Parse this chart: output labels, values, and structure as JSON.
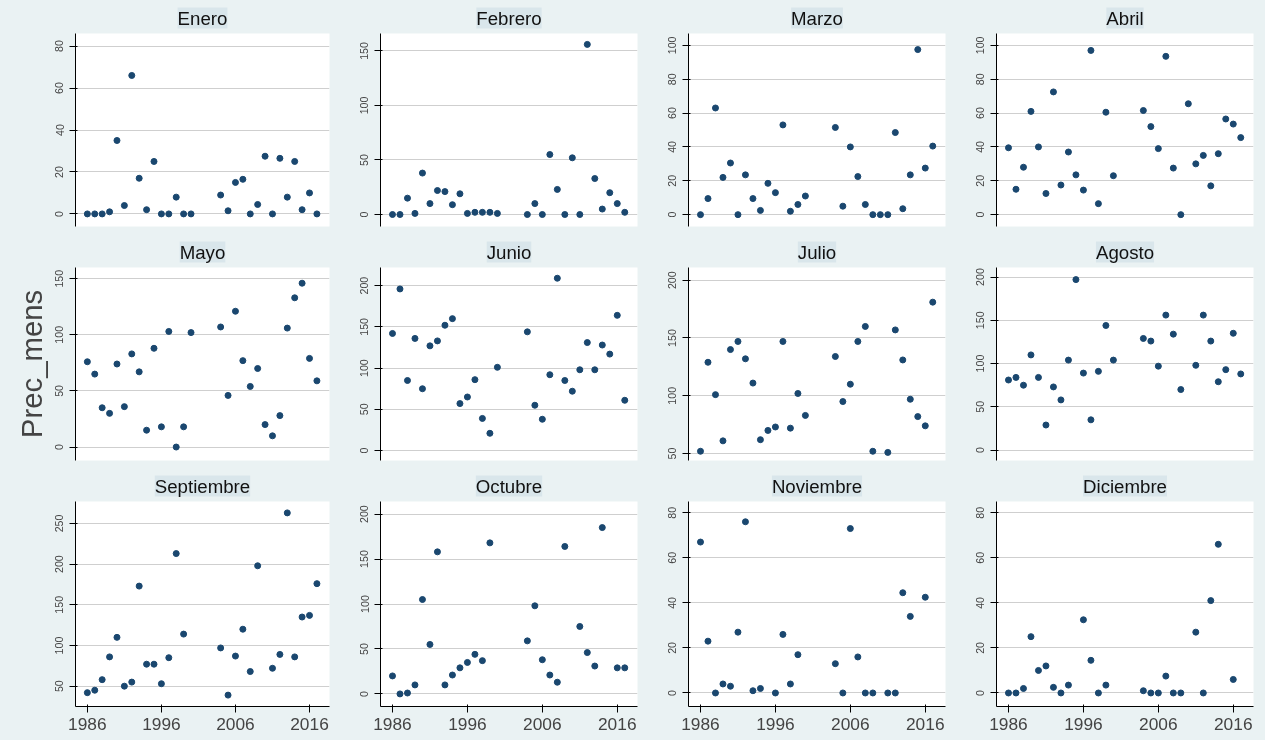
{
  "chart_data": [
    {
      "type": "scatter",
      "title": "Enero",
      "marker": "circle",
      "grid": "y",
      "tick_labels": "y",
      "xlim": [
        1984.4,
        2018.7
      ],
      "xticks": [
        1986,
        1996,
        2006,
        2016
      ],
      "ylim": [
        -6,
        86
      ],
      "yticks": [
        0,
        20,
        40,
        60,
        80
      ],
      "x": [
        1986,
        1987,
        1988,
        1989,
        1990,
        1991,
        1992,
        1993,
        1994,
        1995,
        1996,
        1997,
        1998,
        1999,
        2000,
        2004,
        2005,
        2006,
        2007,
        2008,
        2009,
        2010,
        2011,
        2012,
        2013,
        2014,
        2015,
        2016,
        2017
      ],
      "series": [
        {
          "color": "#1a476f",
          "values": [
            0,
            0,
            0,
            1,
            35,
            4,
            66,
            17,
            2,
            25,
            0,
            0,
            8,
            0,
            0,
            9,
            1.5,
            15,
            16.5,
            0,
            4.5,
            27.5,
            0,
            26.5,
            8,
            25,
            2,
            10,
            0
          ]
        }
      ]
    },
    {
      "type": "scatter",
      "title": "Febrero",
      "marker": "circle",
      "grid": "y",
      "tick_labels": "y",
      "xlim": [
        1984.4,
        2018.7
      ],
      "xticks": [
        1986,
        1996,
        2006,
        2016
      ],
      "ylim": [
        -11,
        166
      ],
      "yticks": [
        0,
        50,
        100,
        150
      ],
      "x": [
        1986,
        1987,
        1988,
        1989,
        1990,
        1991,
        1992,
        1993,
        1994,
        1995,
        1996,
        1997,
        1998,
        1999,
        2000,
        2004,
        2005,
        2006,
        2007,
        2008,
        2009,
        2010,
        2011,
        2012,
        2013,
        2014,
        2015,
        2016,
        2017
      ],
      "series": [
        {
          "color": "#1a476f",
          "values": [
            0,
            0,
            15,
            1,
            38,
            10,
            22,
            21,
            9,
            19,
            1,
            2,
            2,
            2,
            1,
            0,
            10,
            0,
            55,
            23,
            0,
            52,
            0,
            156,
            33,
            5,
            20,
            10,
            2
          ]
        }
      ]
    },
    {
      "type": "scatter",
      "title": "Marzo",
      "marker": "circle",
      "grid": "y",
      "tick_labels": "y",
      "xlim": [
        1984.4,
        2018.7
      ],
      "xticks": [
        1986,
        1996,
        2006,
        2016
      ],
      "ylim": [
        -7,
        107
      ],
      "yticks": [
        0,
        20,
        40,
        60,
        80,
        100
      ],
      "x": [
        1986,
        1987,
        1988,
        1989,
        1990,
        1991,
        1992,
        1993,
        1994,
        1995,
        1996,
        1997,
        1998,
        1999,
        2000,
        2004,
        2005,
        2006,
        2007,
        2008,
        2009,
        2010,
        2011,
        2012,
        2013,
        2014,
        2015,
        2016,
        2017
      ],
      "series": [
        {
          "color": "#1a476f",
          "values": [
            0,
            9.5,
            63,
            22,
            30.5,
            0,
            23.5,
            9.5,
            2.5,
            18.5,
            13,
            53,
            2,
            6,
            11,
            51.5,
            5,
            40,
            22.5,
            6,
            0,
            0,
            0,
            48.5,
            3.5,
            23.5,
            97.5,
            27.5,
            40.5
          ]
        }
      ]
    },
    {
      "type": "scatter",
      "title": "Abril",
      "marker": "circle",
      "grid": "y",
      "tick_labels": "y",
      "xlim": [
        1984.4,
        2018.7
      ],
      "xticks": [
        1986,
        1996,
        2006,
        2016
      ],
      "ylim": [
        -7,
        107
      ],
      "yticks": [
        0,
        20,
        40,
        60,
        80,
        100
      ],
      "x": [
        1986,
        1987,
        1988,
        1989,
        1990,
        1991,
        1992,
        1993,
        1994,
        1995,
        1996,
        1997,
        1998,
        1999,
        2000,
        2004,
        2005,
        2006,
        2007,
        2008,
        2009,
        2010,
        2011,
        2012,
        2013,
        2014,
        2015,
        2016,
        2017
      ],
      "series": [
        {
          "color": "#1a476f",
          "values": [
            39.5,
            15,
            28,
            61,
            40,
            12.5,
            72.5,
            17.5,
            37,
            23.5,
            14.5,
            97,
            6.5,
            60.5,
            23,
            61.5,
            52,
            39,
            93.5,
            27.5,
            0,
            65.5,
            30,
            35,
            17,
            36,
            56.5,
            53.5,
            45.5
          ]
        }
      ]
    },
    {
      "type": "scatter",
      "title": "Mayo",
      "ylabel": "Prec_mens",
      "marker": "circle",
      "grid": "y",
      "tick_labels": "y",
      "xlim": [
        1984.4,
        2018.7
      ],
      "xticks": [
        1986,
        1996,
        2006,
        2016
      ],
      "ylim": [
        -12,
        160
      ],
      "yticks": [
        0,
        50,
        100,
        150
      ],
      "x": [
        1986,
        1987,
        1988,
        1989,
        1990,
        1991,
        1992,
        1993,
        1994,
        1995,
        1996,
        1997,
        1998,
        1999,
        2000,
        2004,
        2005,
        2006,
        2007,
        2008,
        2009,
        2010,
        2011,
        2012,
        2013,
        2014,
        2015,
        2016,
        2017
      ],
      "series": [
        {
          "color": "#1a476f",
          "values": [
            76,
            65,
            35,
            30,
            74,
            36,
            83,
            67,
            15,
            88,
            18,
            103,
            0,
            18,
            102,
            107,
            46,
            121,
            77,
            54,
            70,
            20,
            10,
            28,
            106,
            133,
            146,
            79,
            59
          ]
        }
      ]
    },
    {
      "type": "scatter",
      "title": "Junio",
      "marker": "circle",
      "grid": "y",
      "tick_labels": "y",
      "xlim": [
        1984.4,
        2018.7
      ],
      "xticks": [
        1986,
        1996,
        2006,
        2016
      ],
      "ylim": [
        -12,
        222
      ],
      "yticks": [
        0,
        50,
        100,
        150,
        200
      ],
      "x": [
        1986,
        1987,
        1988,
        1989,
        1990,
        1991,
        1992,
        1993,
        1994,
        1995,
        1996,
        1997,
        1998,
        1999,
        2000,
        2004,
        2005,
        2006,
        2007,
        2008,
        2009,
        2010,
        2011,
        2012,
        2013,
        2014,
        2015,
        2016,
        2017
      ],
      "series": [
        {
          "color": "#1a476f",
          "values": [
            142,
            196,
            85,
            136,
            75,
            127,
            133,
            152,
            160,
            57,
            65,
            86,
            39,
            21,
            101,
            144,
            55,
            38,
            92,
            209,
            85,
            72,
            98,
            131,
            98,
            128,
            117,
            164,
            61
          ]
        }
      ]
    },
    {
      "type": "scatter",
      "title": "Julio",
      "marker": "circle",
      "grid": "y",
      "tick_labels": "y",
      "xlim": [
        1984.4,
        2018.7
      ],
      "xticks": [
        1986,
        1996,
        2006,
        2016
      ],
      "ylim": [
        44,
        211
      ],
      "yticks": [
        50,
        100,
        150,
        200
      ],
      "x": [
        1986,
        1987,
        1988,
        1989,
        1990,
        1991,
        1992,
        1993,
        1994,
        1995,
        1996,
        1997,
        1998,
        1999,
        2000,
        2004,
        2005,
        2006,
        2007,
        2008,
        2009,
        2011,
        2012,
        2013,
        2014,
        2015,
        2016,
        2017
      ],
      "series": [
        {
          "color": "#1a476f",
          "values": [
            52,
            129,
            101,
            61,
            140,
            147,
            132,
            111,
            62,
            70,
            73,
            147,
            72,
            102,
            83,
            134,
            95,
            110,
            147,
            160,
            52,
            51,
            157,
            131,
            97,
            82,
            74,
            181
          ]
        }
      ]
    },
    {
      "type": "scatter",
      "title": "Agosto",
      "marker": "circle",
      "grid": "y",
      "tick_labels": "y",
      "xlim": [
        1984.4,
        2018.7
      ],
      "xticks": [
        1986,
        1996,
        2006,
        2016
      ],
      "ylim": [
        -12,
        211
      ],
      "yticks": [
        0,
        50,
        100,
        150,
        200
      ],
      "x": [
        1986,
        1987,
        1988,
        1989,
        1990,
        1991,
        1992,
        1993,
        1994,
        1995,
        1996,
        1997,
        1998,
        1999,
        2000,
        2004,
        2005,
        2006,
        2007,
        2008,
        2009,
        2011,
        2012,
        2013,
        2014,
        2015,
        2016,
        2017
      ],
      "series": [
        {
          "color": "#1a476f",
          "values": [
            81,
            84,
            75,
            110,
            84,
            29,
            73,
            58,
            104,
            197,
            89,
            35,
            91,
            144,
            104,
            129,
            126,
            97,
            156,
            134,
            70,
            98,
            156,
            126,
            79,
            93,
            135,
            88
          ]
        }
      ]
    },
    {
      "type": "scatter",
      "title": "Septiembre",
      "marker": "circle",
      "grid": "y",
      "xlim": [
        1984.4,
        2018.7
      ],
      "xticks": [
        1986,
        1996,
        2006,
        2016
      ],
      "ylim": [
        25,
        277
      ],
      "yticks": [
        50,
        100,
        150,
        200,
        250
      ],
      "x": [
        1986,
        1987,
        1988,
        1989,
        1990,
        1991,
        1992,
        1993,
        1994,
        1995,
        1996,
        1997,
        1998,
        1999,
        2004,
        2005,
        2006,
        2007,
        2008,
        2009,
        2011,
        2012,
        2013,
        2014,
        2015,
        2016,
        2017
      ],
      "series": [
        {
          "color": "#1a476f",
          "values": [
            42,
            45,
            58,
            86,
            110,
            50,
            55,
            173,
            77,
            77,
            53,
            85,
            213,
            114,
            97,
            39,
            87,
            120,
            68,
            198,
            72,
            89,
            263,
            86,
            135,
            137,
            176
          ]
        }
      ]
    },
    {
      "type": "scatter",
      "title": "Octubre",
      "marker": "circle",
      "grid": "y",
      "xlim": [
        1984.4,
        2018.7
      ],
      "xticks": [
        1986,
        1996,
        2006,
        2016
      ],
      "ylim": [
        -14,
        214
      ],
      "yticks": [
        0,
        50,
        100,
        150,
        200
      ],
      "x": [
        1986,
        1987,
        1988,
        1989,
        1990,
        1991,
        1992,
        1993,
        1994,
        1995,
        1996,
        1997,
        1998,
        1999,
        2004,
        2005,
        2006,
        2007,
        2008,
        2009,
        2011,
        2012,
        2013,
        2014,
        2016,
        2017
      ],
      "series": [
        {
          "color": "#1a476f",
          "values": [
            20,
            0,
            1,
            10,
            105,
            55,
            158,
            10,
            21,
            29,
            35,
            44,
            37,
            168,
            59,
            98,
            38,
            21,
            13,
            164,
            75,
            46,
            31,
            185,
            29,
            29
          ]
        }
      ]
    },
    {
      "type": "scatter",
      "title": "Noviembre",
      "marker": "circle",
      "grid": "y",
      "xlim": [
        1984.4,
        2018.7
      ],
      "xticks": [
        1986,
        1996,
        2006,
        2016
      ],
      "ylim": [
        -6,
        85
      ],
      "yticks": [
        0,
        20,
        40,
        60,
        80
      ],
      "x": [
        1986,
        1987,
        1988,
        1989,
        1990,
        1991,
        1992,
        1993,
        1994,
        1996,
        1997,
        1998,
        1999,
        2004,
        2005,
        2006,
        2007,
        2008,
        2009,
        2011,
        2012,
        2013,
        2014,
        2016
      ],
      "series": [
        {
          "color": "#1a476f",
          "values": [
            67,
            23,
            0,
            4,
            3,
            27,
            76,
            1,
            2,
            0,
            26,
            4,
            17,
            13,
            0,
            73,
            16,
            0,
            0,
            0,
            0,
            44.5,
            34,
            42.5
          ]
        }
      ]
    },
    {
      "type": "scatter",
      "title": "Diciembre",
      "marker": "circle",
      "grid": "y",
      "xlim": [
        1984.4,
        2018.7
      ],
      "xticks": [
        1986,
        1996,
        2006,
        2016
      ],
      "ylim": [
        -6,
        85
      ],
      "yticks": [
        0,
        20,
        40,
        60,
        80
      ],
      "x": [
        1986,
        1987,
        1988,
        1989,
        1990,
        1991,
        1992,
        1993,
        1994,
        1996,
        1997,
        1998,
        1999,
        2004,
        2005,
        2006,
        2007,
        2008,
        2009,
        2011,
        2012,
        2013,
        2014,
        2016
      ],
      "series": [
        {
          "color": "#1a476f",
          "values": [
            0,
            0,
            2,
            25,
            10,
            12,
            2.5,
            0,
            3.5,
            32.5,
            14.5,
            0,
            3.5,
            1,
            0,
            0,
            7.5,
            0,
            0,
            27,
            0,
            41,
            66,
            6
          ]
        }
      ]
    }
  ]
}
